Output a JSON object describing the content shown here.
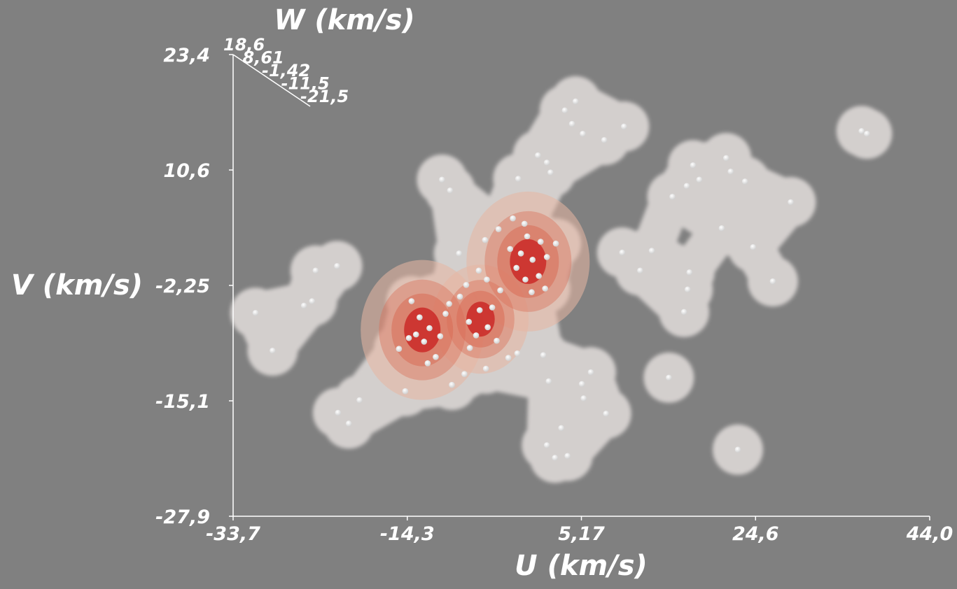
{
  "chart_data": {
    "type": "scatter",
    "subtype": "3d-density-isosurface",
    "xlabel": "U (km/s)",
    "ylabel": "V (km/s)",
    "zlabel": "W (km/s)",
    "x_ticks": [
      "-33,7",
      "-14,3",
      "5,17",
      "24,6",
      "44,0"
    ],
    "y_ticks": [
      "23,4",
      "10,6",
      "-2,25",
      "-15,1",
      "-27,9"
    ],
    "z_ticks": [
      "18,6",
      "8,61",
      "-1,42",
      "-11,5",
      "-21,5"
    ],
    "xlim": [
      -33.7,
      44.0
    ],
    "ylim": [
      -27.9,
      23.4
    ],
    "zlim": [
      -21.5,
      18.6
    ],
    "grid": false,
    "colors": {
      "background": "#808080",
      "outer_isosurface": "#e6e1df",
      "mid_isosurface": "#e8b7a2",
      "inner_isosurface": "#d96b55",
      "core": "#c81e1e",
      "points": "#ffffff",
      "axes": "#ffffff"
    },
    "density_peaks": [
      {
        "u": -12.6,
        "v": -7.2
      },
      {
        "u": -6.1,
        "v": -6.0
      },
      {
        "u": -0.8,
        "v": 0.4
      }
    ],
    "points": [
      {
        "u": -10.4,
        "v": 9.5
      },
      {
        "u": -9.5,
        "v": 8.3
      },
      {
        "u": 0.3,
        "v": 12.2
      },
      {
        "u": 1.3,
        "v": 11.4
      },
      {
        "u": -1.9,
        "v": 9.6
      },
      {
        "u": 1.7,
        "v": 10.3
      },
      {
        "u": 4.1,
        "v": 15.7
      },
      {
        "u": 3.3,
        "v": 17.2
      },
      {
        "u": 4.5,
        "v": 18.2
      },
      {
        "u": 5.3,
        "v": 14.6
      },
      {
        "u": 7.7,
        "v": 13.9
      },
      {
        "u": 9.9,
        "v": 15.4
      },
      {
        "u": 17.6,
        "v": 11.1
      },
      {
        "u": 18.3,
        "v": 9.5
      },
      {
        "u": 21.3,
        "v": 11.9
      },
      {
        "u": 21.8,
        "v": 10.4
      },
      {
        "u": 23.4,
        "v": 9.3
      },
      {
        "u": 15.3,
        "v": 7.6
      },
      {
        "u": 16.9,
        "v": 8.8
      },
      {
        "u": 20.8,
        "v": 4.1
      },
      {
        "u": 24.3,
        "v": 2.0
      },
      {
        "u": 13.0,
        "v": 1.6
      },
      {
        "u": 17.2,
        "v": -0.8
      },
      {
        "u": 17.0,
        "v": -2.7
      },
      {
        "u": 16.6,
        "v": -5.2
      },
      {
        "u": 9.7,
        "v": 1.4
      },
      {
        "u": 11.7,
        "v": -0.6
      },
      {
        "u": 26.5,
        "v": -1.8
      },
      {
        "u": 28.5,
        "v": 7.0
      },
      {
        "u": 36.4,
        "v": 14.9
      },
      {
        "u": 37.0,
        "v": 14.6
      },
      {
        "u": 14.9,
        "v": -12.5
      },
      {
        "u": 22.6,
        "v": -20.5
      },
      {
        "u": -24.5,
        "v": -0.6
      },
      {
        "u": -22.1,
        "v": -0.1
      },
      {
        "u": -24.9,
        "v": -4.0
      },
      {
        "u": -25.8,
        "v": -4.5
      },
      {
        "u": -31.2,
        "v": -5.3
      },
      {
        "u": -29.3,
        "v": -9.5
      },
      {
        "u": -22.0,
        "v": -16.4
      },
      {
        "u": -20.8,
        "v": -17.6
      },
      {
        "u": -19.6,
        "v": -15.0
      },
      {
        "u": -14.5,
        "v": -14.0
      },
      {
        "u": -9.3,
        "v": -13.3
      },
      {
        "u": -7.9,
        "v": -12.1
      },
      {
        "u": -5.5,
        "v": -11.5
      },
      {
        "u": -2.0,
        "v": -9.8
      },
      {
        "u": 0.9,
        "v": -10.0
      },
      {
        "u": 1.5,
        "v": -12.9
      },
      {
        "u": 5.2,
        "v": -13.2
      },
      {
        "u": 6.2,
        "v": -11.9
      },
      {
        "u": 5.4,
        "v": -14.8
      },
      {
        "u": 7.9,
        "v": -16.5
      },
      {
        "u": 2.9,
        "v": -18.1
      },
      {
        "u": 1.3,
        "v": -20.0
      },
      {
        "u": 2.2,
        "v": -21.4
      },
      {
        "u": 3.6,
        "v": -21.2
      },
      {
        "u": -13.8,
        "v": -4.0
      },
      {
        "u": -12.9,
        "v": -5.8
      },
      {
        "u": -13.3,
        "v": -7.7
      },
      {
        "u": -12.4,
        "v": -8.5
      },
      {
        "u": -11.8,
        "v": -7.0
      },
      {
        "u": -14.1,
        "v": -8.1
      },
      {
        "u": -11.1,
        "v": -10.2
      },
      {
        "u": -10.0,
        "v": -5.4
      },
      {
        "u": -10.6,
        "v": -7.9
      },
      {
        "u": -12.0,
        "v": -10.9
      },
      {
        "u": -15.2,
        "v": -9.3
      },
      {
        "u": -7.4,
        "v": -6.3
      },
      {
        "u": -6.2,
        "v": -5.0
      },
      {
        "u": -6.6,
        "v": -7.8
      },
      {
        "u": -5.3,
        "v": -6.9
      },
      {
        "u": -4.8,
        "v": -4.7
      },
      {
        "u": -7.3,
        "v": -9.2
      },
      {
        "u": -4.3,
        "v": -8.4
      },
      {
        "u": -5.4,
        "v": -1.6
      },
      {
        "u": -3.9,
        "v": -2.8
      },
      {
        "u": -6.3,
        "v": -0.6
      },
      {
        "u": -8.5,
        "v": 1.3
      },
      {
        "u": -5.6,
        "v": 2.8
      },
      {
        "u": -4.1,
        "v": 4.0
      },
      {
        "u": -2.5,
        "v": 5.2
      },
      {
        "u": -1.2,
        "v": 4.6
      },
      {
        "u": -0.9,
        "v": 3.2
      },
      {
        "u": 0.6,
        "v": 2.6
      },
      {
        "u": -1.6,
        "v": 1.3
      },
      {
        "u": -0.3,
        "v": 0.6
      },
      {
        "u": -2.1,
        "v": -0.3
      },
      {
        "u": -1.1,
        "v": -1.6
      },
      {
        "u": 0.4,
        "v": -1.2
      },
      {
        "u": -2.8,
        "v": 1.8
      },
      {
        "u": 1.3,
        "v": 0.9
      },
      {
        "u": 2.3,
        "v": 2.4
      },
      {
        "u": 1.1,
        "v": -2.6
      },
      {
        "u": -0.4,
        "v": -3.0
      },
      {
        "u": -8.4,
        "v": -3.5
      },
      {
        "u": -7.7,
        "v": -2.2
      },
      {
        "u": -9.6,
        "v": -4.3
      },
      {
        "u": -3.0,
        "v": -10.3
      }
    ]
  }
}
